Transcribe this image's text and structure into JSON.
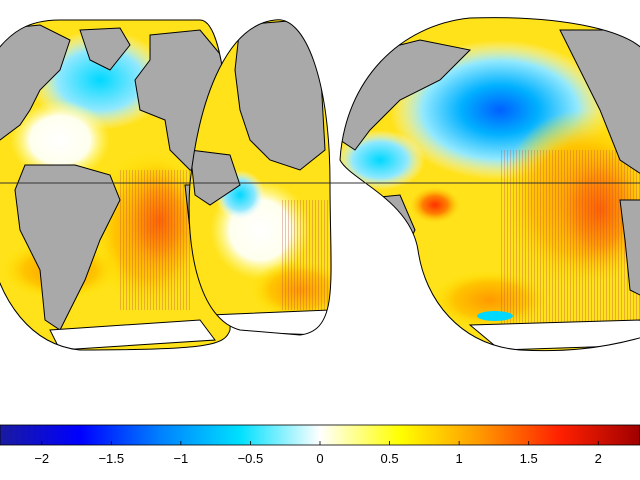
{
  "colorbar": {
    "min": -2.3,
    "max": 2.3,
    "ticks": [
      {
        "value": -2,
        "label": "−2"
      },
      {
        "value": -1.5,
        "label": "−1.5"
      },
      {
        "value": -1,
        "label": "−1"
      },
      {
        "value": -0.5,
        "label": "−0.5"
      },
      {
        "value": 0,
        "label": "0"
      },
      {
        "value": 0.5,
        "label": "0.5"
      },
      {
        "value": 1,
        "label": "1"
      },
      {
        "value": 1.5,
        "label": "1.5"
      },
      {
        "value": 2,
        "label": "2"
      }
    ],
    "stops": [
      "#1a1aa0",
      "#0000ff",
      "#0080ff",
      "#00e0ff",
      "#ffffff",
      "#ffff00",
      "#ff9900",
      "#ff2000",
      "#a00000"
    ]
  },
  "map": {
    "projection": "interrupted-goode",
    "land_color": "#a9a9a9",
    "coast_color": "#000000"
  }
}
